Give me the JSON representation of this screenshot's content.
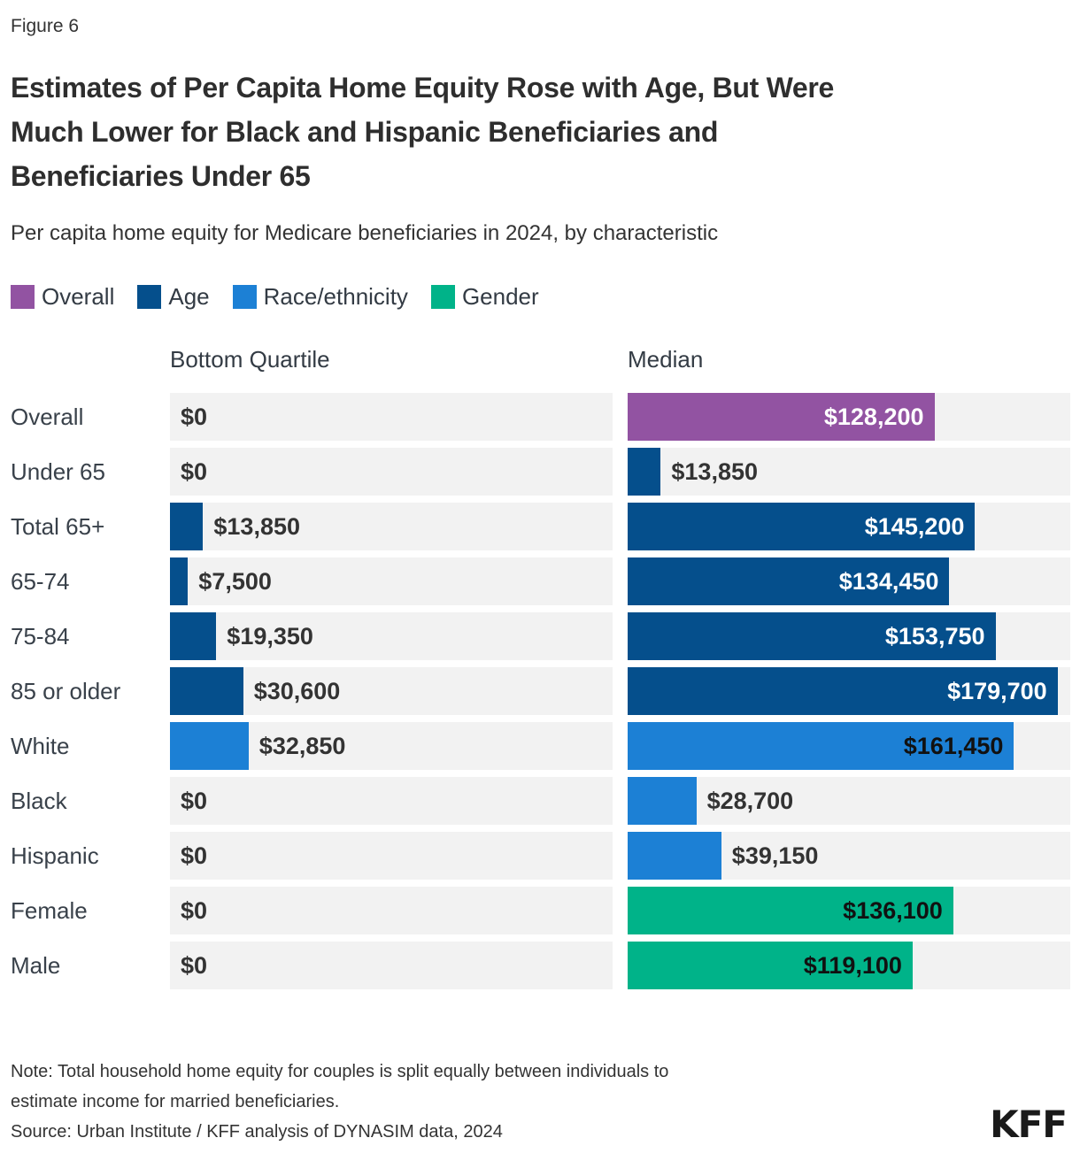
{
  "figure_label": "Figure 6",
  "title_lines": [
    "Estimates of Per Capita Home Equity Rose with Age, But Were",
    "Much Lower for Black and Hispanic Beneficiaries and",
    "Beneficiaries Under 65"
  ],
  "subtitle": "Per capita home equity for Medicare beneficiaries in 2024, by characteristic",
  "legend": [
    {
      "label": "Overall",
      "group": "overall",
      "color": "#9253A2"
    },
    {
      "label": "Age",
      "group": "age",
      "color": "#054F8C"
    },
    {
      "label": "Race/ethnicity",
      "group": "race",
      "color": "#1C80D5"
    },
    {
      "label": "Gender",
      "group": "gender",
      "color": "#00B389"
    }
  ],
  "columns": {
    "bottom": "Bottom Quartile",
    "median": "Median"
  },
  "chart_data": {
    "type": "bar",
    "orientation": "horizontal",
    "unit": "USD",
    "axis_max": 185000,
    "grid": false,
    "series_columns": [
      "Bottom Quartile",
      "Median"
    ],
    "group_colors": {
      "overall": "#9253A2",
      "age": "#054F8C",
      "race": "#1C80D5",
      "gender": "#00B389"
    },
    "rows": [
      {
        "label": "Overall",
        "group": "overall",
        "bottom_quartile": 0,
        "bottom_quartile_label": "$0",
        "median": 128200,
        "median_label": "$128,200"
      },
      {
        "label": "Under 65",
        "group": "age",
        "bottom_quartile": 0,
        "bottom_quartile_label": "$0",
        "median": 13850,
        "median_label": "$13,850"
      },
      {
        "label": "Total 65+",
        "group": "age",
        "bottom_quartile": 13850,
        "bottom_quartile_label": "$13,850",
        "median": 145200,
        "median_label": "$145,200"
      },
      {
        "label": "65-74",
        "group": "age",
        "bottom_quartile": 7500,
        "bottom_quartile_label": "$7,500",
        "median": 134450,
        "median_label": "$134,450"
      },
      {
        "label": "75-84",
        "group": "age",
        "bottom_quartile": 19350,
        "bottom_quartile_label": "$19,350",
        "median": 153750,
        "median_label": "$153,750"
      },
      {
        "label": "85 or older",
        "group": "age",
        "bottom_quartile": 30600,
        "bottom_quartile_label": "$30,600",
        "median": 179700,
        "median_label": "$179,700"
      },
      {
        "label": "White",
        "group": "race",
        "bottom_quartile": 32850,
        "bottom_quartile_label": "$32,850",
        "median": 161450,
        "median_label": "$161,450"
      },
      {
        "label": "Black",
        "group": "race",
        "bottom_quartile": 0,
        "bottom_quartile_label": "$0",
        "median": 28700,
        "median_label": "$28,700"
      },
      {
        "label": "Hispanic",
        "group": "race",
        "bottom_quartile": 0,
        "bottom_quartile_label": "$0",
        "median": 39150,
        "median_label": "$39,150"
      },
      {
        "label": "Female",
        "group": "gender",
        "bottom_quartile": 0,
        "bottom_quartile_label": "$0",
        "median": 136100,
        "median_label": "$136,100"
      },
      {
        "label": "Male",
        "group": "gender",
        "bottom_quartile": 0,
        "bottom_quartile_label": "$0",
        "median": 119100,
        "median_label": "$119,100"
      }
    ],
    "title": "Estimates of Per Capita Home Equity Rose with Age, But Were Much Lower for Black and Hispanic Beneficiaries and Beneficiaries Under 65",
    "xlabel": "",
    "ylabel": ""
  },
  "note_lines": [
    "Note: Total household home equity for couples is split equally between individuals to",
    "estimate income for married beneficiaries."
  ],
  "source": "Source: Urban Institute / KFF analysis of DYNASIM data, 2024",
  "logo": "KFF",
  "colors": {
    "track": "#F2F2F2",
    "text": "#333333",
    "value_inside_light": "#FFFFFF",
    "value_inside_dark": "#111111"
  }
}
